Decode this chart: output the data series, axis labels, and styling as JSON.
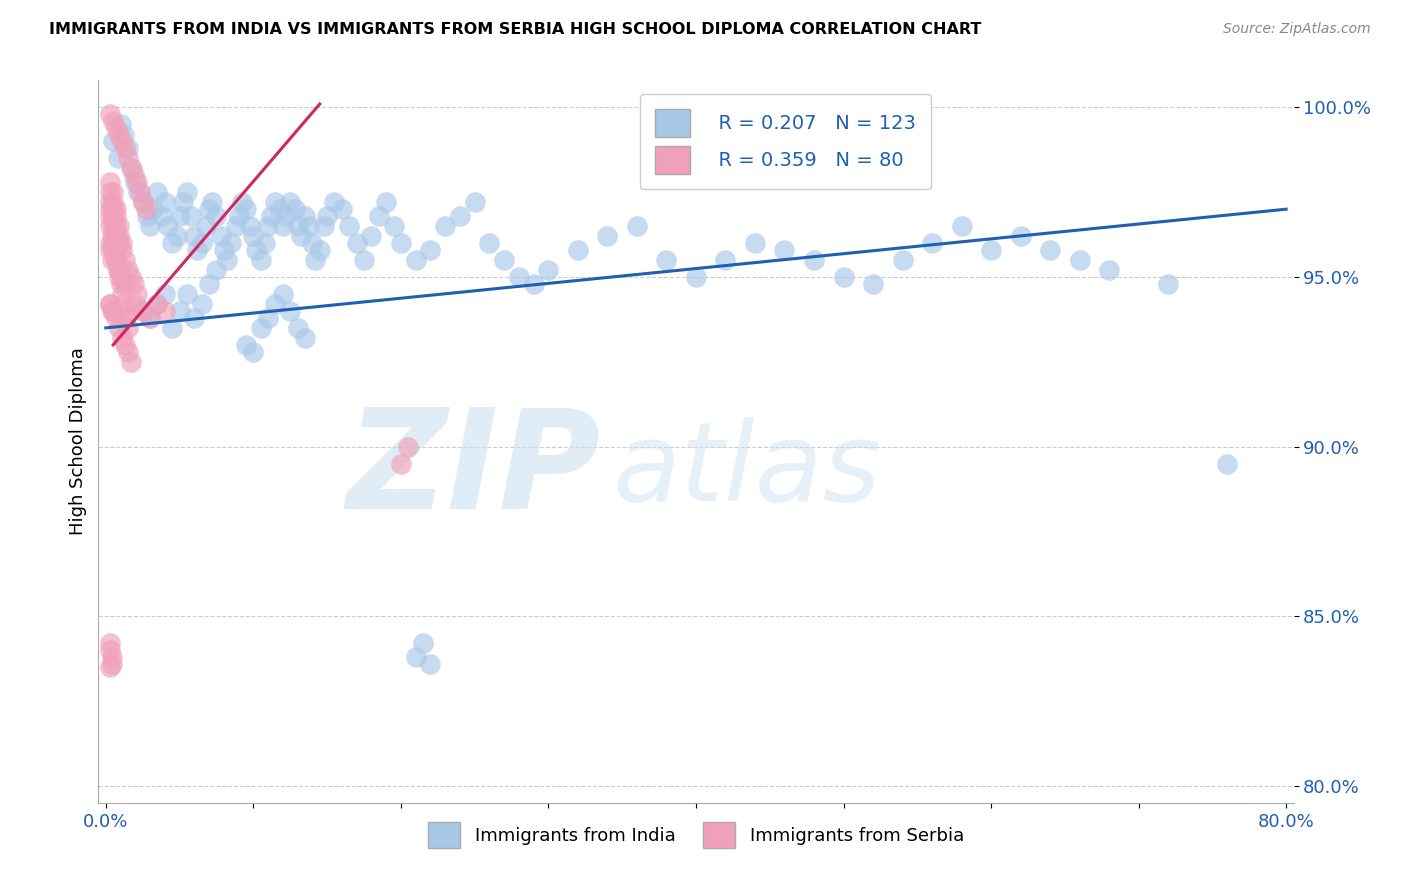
{
  "title": "IMMIGRANTS FROM INDIA VS IMMIGRANTS FROM SERBIA HIGH SCHOOL DIPLOMA CORRELATION CHART",
  "source": "Source: ZipAtlas.com",
  "ylabel": "High School Diploma",
  "xlim": [
    -0.005,
    0.805
  ],
  "ylim": [
    0.795,
    1.008
  ],
  "india_R": 0.207,
  "india_N": 123,
  "serbia_R": 0.359,
  "serbia_N": 80,
  "india_color": "#a8c8e8",
  "serbia_color": "#f0a0b8",
  "india_line_color": "#2060b0",
  "serbia_line_color": "#d02860",
  "watermark_zip": "ZIP",
  "watermark_atlas": "atlas",
  "india_line_x0": 0.0,
  "india_line_x1": 0.8,
  "india_line_y0": 0.935,
  "india_line_y1": 0.97,
  "serbia_line_x0": 0.005,
  "serbia_line_x1": 0.145,
  "serbia_line_y0": 0.93,
  "serbia_line_y1": 1.001,
  "india_x": [
    0.005,
    0.008,
    0.01,
    0.012,
    0.015,
    0.018,
    0.02,
    0.022,
    0.025,
    0.028,
    0.03,
    0.032,
    0.035,
    0.038,
    0.04,
    0.042,
    0.045,
    0.048,
    0.05,
    0.052,
    0.055,
    0.058,
    0.06,
    0.062,
    0.065,
    0.068,
    0.07,
    0.072,
    0.075,
    0.078,
    0.08,
    0.082,
    0.085,
    0.088,
    0.09,
    0.092,
    0.095,
    0.098,
    0.1,
    0.102,
    0.105,
    0.108,
    0.11,
    0.112,
    0.115,
    0.118,
    0.12,
    0.122,
    0.125,
    0.128,
    0.13,
    0.132,
    0.135,
    0.138,
    0.14,
    0.142,
    0.145,
    0.148,
    0.15,
    0.155,
    0.16,
    0.165,
    0.17,
    0.175,
    0.18,
    0.185,
    0.19,
    0.195,
    0.2,
    0.21,
    0.22,
    0.23,
    0.24,
    0.25,
    0.26,
    0.27,
    0.28,
    0.29,
    0.3,
    0.32,
    0.34,
    0.36,
    0.38,
    0.4,
    0.42,
    0.44,
    0.46,
    0.48,
    0.5,
    0.52,
    0.54,
    0.56,
    0.58,
    0.6,
    0.62,
    0.64,
    0.66,
    0.68,
    0.72,
    0.76,
    0.025,
    0.03,
    0.035,
    0.04,
    0.045,
    0.05,
    0.055,
    0.06,
    0.065,
    0.07,
    0.075,
    0.21,
    0.215,
    0.22,
    0.095,
    0.1,
    0.105,
    0.11,
    0.115,
    0.12,
    0.125,
    0.13,
    0.135
  ],
  "india_y": [
    0.99,
    0.985,
    0.995,
    0.992,
    0.988,
    0.982,
    0.978,
    0.975,
    0.972,
    0.968,
    0.965,
    0.97,
    0.975,
    0.968,
    0.972,
    0.965,
    0.96,
    0.962,
    0.968,
    0.972,
    0.975,
    0.968,
    0.962,
    0.958,
    0.96,
    0.965,
    0.97,
    0.972,
    0.968,
    0.962,
    0.958,
    0.955,
    0.96,
    0.965,
    0.968,
    0.972,
    0.97,
    0.965,
    0.962,
    0.958,
    0.955,
    0.96,
    0.965,
    0.968,
    0.972,
    0.97,
    0.965,
    0.968,
    0.972,
    0.97,
    0.965,
    0.962,
    0.968,
    0.965,
    0.96,
    0.955,
    0.958,
    0.965,
    0.968,
    0.972,
    0.97,
    0.965,
    0.96,
    0.955,
    0.962,
    0.968,
    0.972,
    0.965,
    0.96,
    0.955,
    0.958,
    0.965,
    0.968,
    0.972,
    0.96,
    0.955,
    0.95,
    0.948,
    0.952,
    0.958,
    0.962,
    0.965,
    0.955,
    0.95,
    0.955,
    0.96,
    0.958,
    0.955,
    0.95,
    0.948,
    0.955,
    0.96,
    0.965,
    0.958,
    0.962,
    0.958,
    0.955,
    0.952,
    0.948,
    0.895,
    0.94,
    0.938,
    0.942,
    0.945,
    0.935,
    0.94,
    0.945,
    0.938,
    0.942,
    0.948,
    0.952,
    0.838,
    0.842,
    0.836,
    0.93,
    0.928,
    0.935,
    0.938,
    0.942,
    0.945,
    0.94,
    0.935,
    0.932
  ],
  "serbia_x": [
    0.003,
    0.005,
    0.007,
    0.009,
    0.011,
    0.013,
    0.015,
    0.017,
    0.019,
    0.021,
    0.023,
    0.025,
    0.027,
    0.003,
    0.005,
    0.007,
    0.009,
    0.011,
    0.013,
    0.015,
    0.017,
    0.019,
    0.021,
    0.003,
    0.005,
    0.007,
    0.009,
    0.011,
    0.013,
    0.015,
    0.017,
    0.003,
    0.005,
    0.007,
    0.009,
    0.011,
    0.013,
    0.003,
    0.005,
    0.007,
    0.009,
    0.011,
    0.003,
    0.005,
    0.007,
    0.009,
    0.003,
    0.005,
    0.007,
    0.003,
    0.005,
    0.003,
    0.004,
    0.003,
    0.004,
    0.003,
    0.004,
    0.005,
    0.006,
    0.007,
    0.008,
    0.009,
    0.01,
    0.011,
    0.012,
    0.013,
    0.014,
    0.015,
    0.02,
    0.025,
    0.03,
    0.035,
    0.04,
    0.2,
    0.205,
    0.003,
    0.004,
    0.003,
    0.003,
    0.004
  ],
  "serbia_y": [
    0.998,
    0.996,
    0.994,
    0.992,
    0.99,
    0.988,
    0.985,
    0.982,
    0.98,
    0.978,
    0.975,
    0.972,
    0.97,
    0.968,
    0.965,
    0.962,
    0.96,
    0.958,
    0.955,
    0.952,
    0.95,
    0.948,
    0.945,
    0.942,
    0.94,
    0.938,
    0.935,
    0.932,
    0.93,
    0.928,
    0.925,
    0.96,
    0.958,
    0.955,
    0.952,
    0.95,
    0.948,
    0.97,
    0.968,
    0.965,
    0.962,
    0.96,
    0.972,
    0.97,
    0.968,
    0.965,
    0.975,
    0.972,
    0.97,
    0.978,
    0.975,
    0.942,
    0.94,
    0.958,
    0.955,
    0.965,
    0.962,
    0.96,
    0.958,
    0.955,
    0.952,
    0.95,
    0.948,
    0.945,
    0.942,
    0.94,
    0.938,
    0.935,
    0.942,
    0.94,
    0.938,
    0.942,
    0.94,
    0.895,
    0.9,
    0.84,
    0.838,
    0.842,
    0.835,
    0.836
  ]
}
